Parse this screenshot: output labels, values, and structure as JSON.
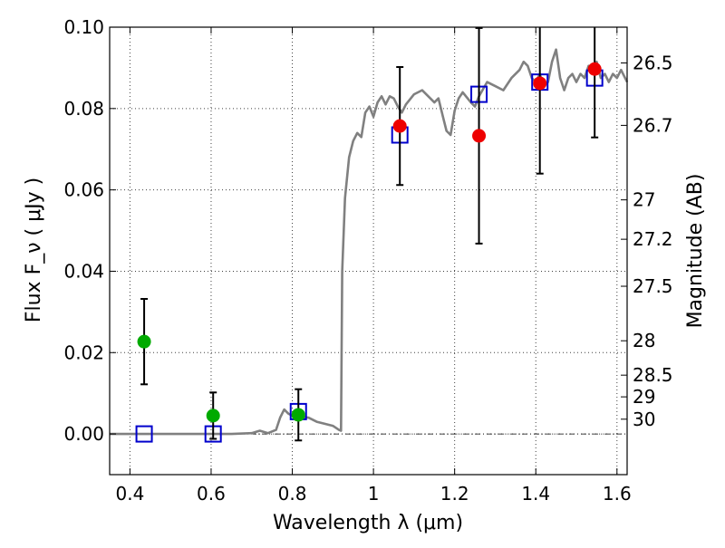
{
  "chart_data": {
    "type": "scatter",
    "xlabel": "Wavelength  λ (μm)",
    "ylabel": "Flux  F_ν  ( μJy )",
    "y2label": "Magnitude (AB)",
    "xlim": [
      0.35,
      1.625
    ],
    "ylim": [
      -0.01,
      0.1
    ],
    "grid": true,
    "x_ticks": [
      0.4,
      0.6,
      0.8,
      1.0,
      1.2,
      1.4,
      1.6
    ],
    "x_tick_labels": [
      "0.4",
      "0.6",
      "0.8",
      "1",
      "1.2",
      "1.4",
      "1.6"
    ],
    "y_ticks": [
      0.0,
      0.02,
      0.04,
      0.06,
      0.08,
      0.1
    ],
    "y_tick_labels": [
      "0.00",
      "0.02",
      "0.04",
      "0.06",
      "0.08",
      "0.10"
    ],
    "magnitude_ticks": [
      "26.5",
      "26.7",
      "27",
      "27.2",
      "27.5",
      "28",
      "28.5",
      "29",
      "30"
    ],
    "colors": {
      "template": "#808080",
      "model_marker": "#0000cc",
      "upper_limit_marker": "#00aa00",
      "detection_marker": "#ee0000",
      "error_bar": "#000000"
    },
    "series": [
      {
        "kind": "line",
        "color": "#808080",
        "points": [
          [
            0.35,
            0.0
          ],
          [
            0.5,
            0.0
          ],
          [
            0.65,
            0.0
          ],
          [
            0.7,
            0.0002
          ],
          [
            0.72,
            0.0008
          ],
          [
            0.74,
            0.0002
          ],
          [
            0.76,
            0.001
          ],
          [
            0.77,
            0.004
          ],
          [
            0.78,
            0.006
          ],
          [
            0.79,
            0.005
          ],
          [
            0.8,
            0.0045
          ],
          [
            0.82,
            0.0042
          ],
          [
            0.84,
            0.004
          ],
          [
            0.86,
            0.003
          ],
          [
            0.88,
            0.0025
          ],
          [
            0.9,
            0.002
          ],
          [
            0.915,
            0.001
          ],
          [
            0.92,
            0.0008
          ],
          [
            0.923,
            0.04
          ],
          [
            0.93,
            0.058
          ],
          [
            0.94,
            0.068
          ],
          [
            0.95,
            0.072
          ],
          [
            0.96,
            0.074
          ],
          [
            0.97,
            0.073
          ],
          [
            0.98,
            0.079
          ],
          [
            0.99,
            0.0805
          ],
          [
            1.0,
            0.078
          ],
          [
            1.01,
            0.0815
          ],
          [
            1.02,
            0.083
          ],
          [
            1.03,
            0.081
          ],
          [
            1.04,
            0.083
          ],
          [
            1.05,
            0.0825
          ],
          [
            1.06,
            0.0805
          ],
          [
            1.07,
            0.079
          ],
          [
            1.08,
            0.081
          ],
          [
            1.1,
            0.0835
          ],
          [
            1.12,
            0.0845
          ],
          [
            1.13,
            0.0835
          ],
          [
            1.15,
            0.0815
          ],
          [
            1.16,
            0.0825
          ],
          [
            1.17,
            0.0785
          ],
          [
            1.18,
            0.0745
          ],
          [
            1.19,
            0.0735
          ],
          [
            1.2,
            0.0795
          ],
          [
            1.21,
            0.0825
          ],
          [
            1.22,
            0.084
          ],
          [
            1.24,
            0.0815
          ],
          [
            1.25,
            0.0805
          ],
          [
            1.26,
            0.083
          ],
          [
            1.28,
            0.0865
          ],
          [
            1.3,
            0.0855
          ],
          [
            1.32,
            0.0845
          ],
          [
            1.34,
            0.0875
          ],
          [
            1.36,
            0.0895
          ],
          [
            1.37,
            0.0915
          ],
          [
            1.38,
            0.0905
          ],
          [
            1.39,
            0.0875
          ],
          [
            1.4,
            0.0865
          ],
          [
            1.41,
            0.0885
          ],
          [
            1.42,
            0.0855
          ],
          [
            1.43,
            0.0865
          ],
          [
            1.44,
            0.0915
          ],
          [
            1.45,
            0.0945
          ],
          [
            1.46,
            0.0875
          ],
          [
            1.47,
            0.0845
          ],
          [
            1.48,
            0.0875
          ],
          [
            1.49,
            0.0885
          ],
          [
            1.5,
            0.0865
          ],
          [
            1.51,
            0.0885
          ],
          [
            1.52,
            0.0875
          ],
          [
            1.53,
            0.0905
          ],
          [
            1.54,
            0.0885
          ],
          [
            1.55,
            0.0915
          ],
          [
            1.56,
            0.0875
          ],
          [
            1.57,
            0.0885
          ],
          [
            1.58,
            0.0865
          ],
          [
            1.59,
            0.0885
          ],
          [
            1.6,
            0.0875
          ],
          [
            1.61,
            0.0895
          ],
          [
            1.625,
            0.0865
          ]
        ]
      },
      {
        "kind": "open_square",
        "color": "#0000cc",
        "points": [
          [
            0.435,
            0.0
          ],
          [
            0.605,
            0.0
          ],
          [
            0.815,
            0.0055
          ],
          [
            1.065,
            0.0735
          ],
          [
            1.26,
            0.0835
          ],
          [
            1.41,
            0.0865
          ],
          [
            1.545,
            0.0875
          ]
        ]
      },
      {
        "kind": "filled_circle",
        "color": "#00aa00",
        "points": [
          {
            "x": 0.435,
            "y": 0.0227,
            "err": 0.0105
          },
          {
            "x": 0.605,
            "y": 0.0045,
            "err": 0.0057
          },
          {
            "x": 0.815,
            "y": 0.0047,
            "err": 0.0063
          }
        ]
      },
      {
        "kind": "filled_circle",
        "color": "#ee0000",
        "points": [
          {
            "x": 1.065,
            "y": 0.0757,
            "err": 0.0145
          },
          {
            "x": 1.26,
            "y": 0.0733,
            "err": 0.0265
          },
          {
            "x": 1.41,
            "y": 0.0862,
            "err": 0.0222
          },
          {
            "x": 1.545,
            "y": 0.0897,
            "err": 0.0168
          }
        ]
      }
    ]
  }
}
